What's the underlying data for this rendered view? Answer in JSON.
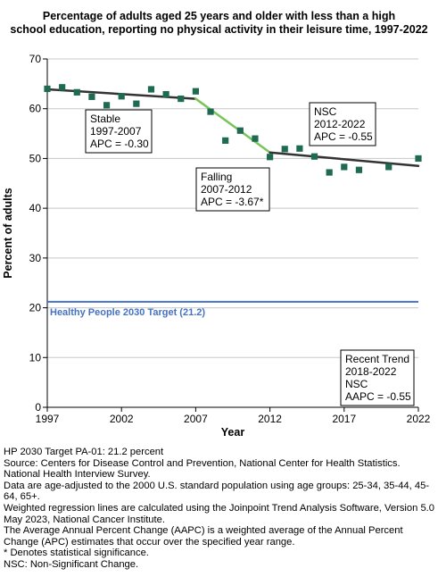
{
  "chart_data": {
    "type": "line",
    "title_lines": [
      "Percentage of adults aged 25 years and older with less than a high",
      "school education, reporting no physical activity in their leisure time, 1997-2022"
    ],
    "xlabel": "Year",
    "ylabel": "Percent of adults",
    "xlim": [
      1997,
      2022
    ],
    "ylim": [
      0,
      70
    ],
    "x_ticks": [
      1997,
      2002,
      2007,
      2012,
      2017,
      2022
    ],
    "y_ticks": [
      0,
      10,
      20,
      30,
      40,
      50,
      60,
      70
    ],
    "grid": "horizontal",
    "observed": {
      "marker": "square",
      "color": "#1e6b52",
      "points": [
        [
          1997,
          64.0
        ],
        [
          1998,
          64.3
        ],
        [
          1999,
          63.3
        ],
        [
          2000,
          62.4
        ],
        [
          2001,
          60.7
        ],
        [
          2002,
          62.5
        ],
        [
          2003,
          61.0
        ],
        [
          2004,
          63.9
        ],
        [
          2005,
          62.9
        ],
        [
          2006,
          62.0
        ],
        [
          2007,
          63.5
        ],
        [
          2008,
          59.4
        ],
        [
          2009,
          53.6
        ],
        [
          2010,
          55.6
        ],
        [
          2011,
          54.0
        ],
        [
          2012,
          50.3
        ],
        [
          2013,
          51.9
        ],
        [
          2014,
          52.0
        ],
        [
          2015,
          50.4
        ],
        [
          2016,
          47.2
        ],
        [
          2017,
          48.3
        ],
        [
          2018,
          47.7
        ],
        [
          2020,
          48.3
        ],
        [
          2022,
          50.0
        ]
      ]
    },
    "trend_segments": [
      {
        "start": [
          1997,
          63.9
        ],
        "end": [
          2007,
          62.0
        ],
        "color": "#333333",
        "significant": false
      },
      {
        "start": [
          2007,
          62.0
        ],
        "end": [
          2012,
          51.2
        ],
        "color": "#7ac55a",
        "significant": true
      },
      {
        "start": [
          2012,
          51.2
        ],
        "end": [
          2022,
          48.5
        ],
        "color": "#333333",
        "significant": false
      }
    ],
    "target": {
      "value": 21.2,
      "label": "Healthy People 2030 Target (21.2)",
      "color": "#4472c4"
    },
    "annotations": [
      {
        "id": "stable",
        "lines": [
          "Stable",
          "1997-2007",
          "APC = -0.30"
        ]
      },
      {
        "id": "falling",
        "lines": [
          "Falling",
          "2007-2012",
          "APC = -3.67*"
        ]
      },
      {
        "id": "nsc",
        "lines": [
          "NSC",
          "2012-2022",
          "APC = -0.55"
        ]
      },
      {
        "id": "recent",
        "lines": [
          "Recent Trend",
          "2018-2022",
          "NSC",
          "AAPC = -0.55"
        ]
      }
    ]
  },
  "notes": [
    "HP 2030 Target PA-01: 21.2 percent",
    "Source: Centers for Disease Control and Prevention, National Center for Health Statistics. National Health Interview Survey.",
    "Data are age-adjusted to the 2000 U.S. standard population using age groups: 25-34, 35-44, 45-64, 65+.",
    "Weighted regression lines are calculated using the Joinpoint Trend Analysis Software, Version 5.0 May 2023, National Cancer Institute.",
    "The Average Annual Percent Change (AAPC) is a weighted average of the Annual Percent Change (APC) estimates that occur over the specified year range.",
    "* Denotes statistical significance.",
    "NSC: Non-Significant Change."
  ]
}
